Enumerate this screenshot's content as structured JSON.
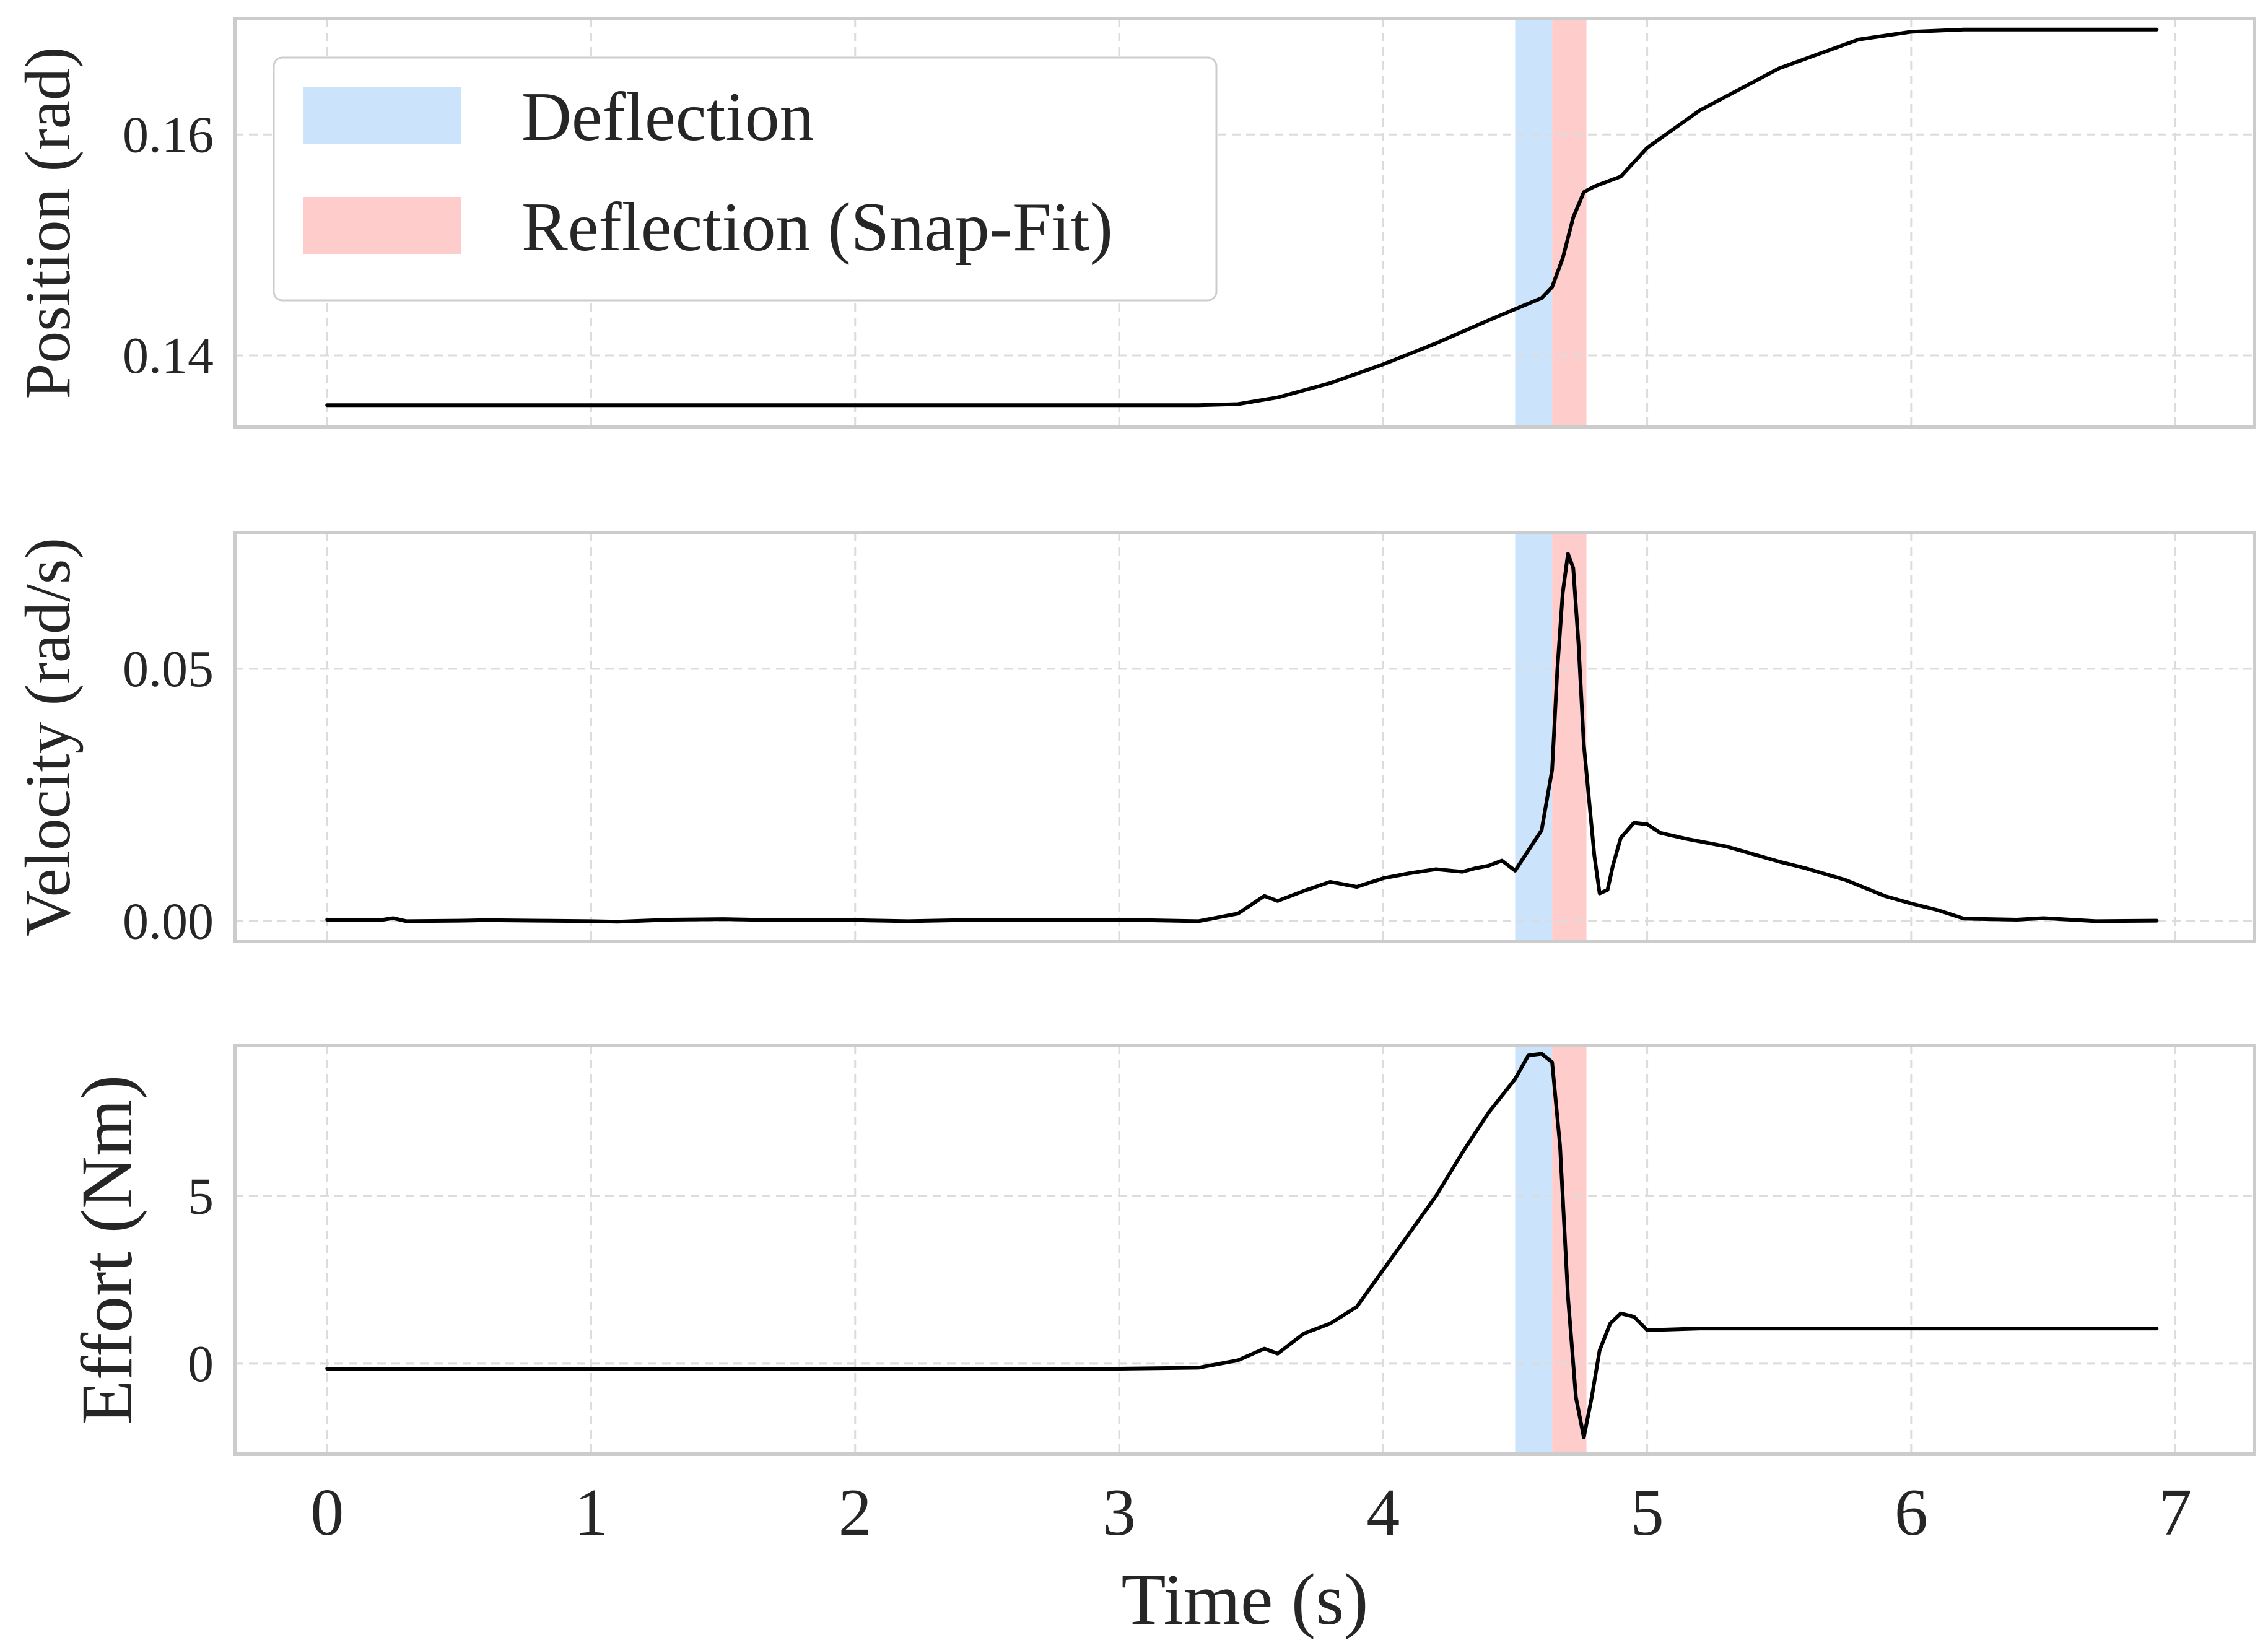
{
  "chart_data": {
    "type": "line",
    "xlabel": "Time (s)",
    "xlim": [
      -0.35,
      7.3
    ],
    "xticks": [
      0,
      1,
      2,
      3,
      4,
      5,
      6,
      7
    ],
    "x_tick_labels": [
      "0",
      "1",
      "2",
      "3",
      "4",
      "5",
      "6",
      "7"
    ],
    "grid": true,
    "colors": {
      "line": "#000000",
      "deflection": "#cce4fb",
      "reflection": "#ffcccc",
      "frame": "#cccccc",
      "grid": "#dcdcdc"
    },
    "shaded_regions": [
      {
        "label": "Deflection",
        "x_start": 4.5,
        "x_end": 4.64,
        "color": "#cce4fb"
      },
      {
        "label": "Reflection (Snap-Fit)",
        "x_start": 4.64,
        "x_end": 4.77,
        "color": "#ffcccc"
      }
    ],
    "legend": {
      "location": "upper-left of top panel",
      "entries": [
        "Deflection",
        "Reflection (Snap-Fit)"
      ]
    },
    "panels": [
      {
        "id": "position",
        "ylabel": "Position (rad)",
        "ylim": [
          0.1335,
          0.1705
        ],
        "yticks": [
          0.14,
          0.16
        ],
        "y_tick_labels": [
          "0.14",
          "0.16"
        ],
        "series": [
          {
            "name": "Position",
            "x": [
              0,
              1,
              2,
              3,
              3.3,
              3.45,
              3.6,
              3.8,
              4.0,
              4.2,
              4.4,
              4.5,
              4.6,
              4.64,
              4.68,
              4.72,
              4.76,
              4.8,
              4.9,
              5.0,
              5.2,
              5.5,
              5.8,
              6.0,
              6.2,
              6.5,
              6.93
            ],
            "y": [
              0.1355,
              0.1355,
              0.1355,
              0.1355,
              0.1355,
              0.1356,
              0.1362,
              0.1375,
              0.1392,
              0.1411,
              0.1432,
              0.1442,
              0.1452,
              0.1462,
              0.1488,
              0.1525,
              0.1548,
              0.1553,
              0.1562,
              0.1588,
              0.1622,
              0.166,
              0.1686,
              0.1693,
              0.1695,
              0.1695,
              0.1695
            ]
          }
        ]
      },
      {
        "id": "velocity",
        "ylabel": "Velocity (rad/s)",
        "ylim": [
          -0.004,
          0.077
        ],
        "yticks": [
          0.0,
          0.05
        ],
        "y_tick_labels": [
          "0.00",
          "0.05"
        ],
        "series": [
          {
            "name": "Velocity",
            "x": [
              0,
              0.2,
              0.25,
              0.3,
              0.5,
              0.6,
              0.8,
              1.0,
              1.1,
              1.3,
              1.5,
              1.7,
              1.9,
              2.0,
              2.2,
              2.5,
              2.7,
              3.0,
              3.3,
              3.45,
              3.55,
              3.6,
              3.7,
              3.8,
              3.9,
              4.0,
              4.1,
              4.2,
              4.3,
              4.35,
              4.4,
              4.45,
              4.5,
              4.55,
              4.6,
              4.64,
              4.66,
              4.68,
              4.7,
              4.72,
              4.74,
              4.76,
              4.8,
              4.82,
              4.85,
              4.87,
              4.9,
              4.95,
              5.0,
              5.05,
              5.15,
              5.3,
              5.5,
              5.6,
              5.75,
              5.9,
              6.0,
              6.1,
              6.2,
              6.4,
              6.5,
              6.7,
              6.93
            ],
            "y": [
              0.0003,
              0.0002,
              0.0006,
              0.0,
              0.0001,
              0.0002,
              0.0001,
              0.0,
              -0.0001,
              0.0003,
              0.0004,
              0.0002,
              0.0003,
              0.0002,
              0.0,
              0.0003,
              0.0002,
              0.0003,
              0.0,
              0.0015,
              0.005,
              0.004,
              0.006,
              0.0078,
              0.0068,
              0.0085,
              0.0095,
              0.0103,
              0.0098,
              0.0105,
              0.011,
              0.012,
              0.01,
              0.014,
              0.018,
              0.03,
              0.05,
              0.065,
              0.0728,
              0.07,
              0.055,
              0.035,
              0.013,
              0.0055,
              0.0062,
              0.011,
              0.0165,
              0.0195,
              0.0192,
              0.0175,
              0.0163,
              0.0148,
              0.0118,
              0.0105,
              0.0082,
              0.005,
              0.0035,
              0.0022,
              0.0005,
              0.0003,
              0.0006,
              0.0,
              0.0001
            ]
          }
        ]
      },
      {
        "id": "effort",
        "ylabel": "Effort (Nm)",
        "ylim": [
          -2.7,
          9.5
        ],
        "yticks": [
          0,
          5
        ],
        "y_tick_labels": [
          "0",
          "5"
        ],
        "series": [
          {
            "name": "Effort",
            "x": [
              0,
              1,
              2,
              3,
              3.3,
              3.45,
              3.55,
              3.6,
              3.7,
              3.8,
              3.9,
              4.0,
              4.1,
              4.2,
              4.3,
              4.4,
              4.5,
              4.55,
              4.6,
              4.64,
              4.67,
              4.7,
              4.73,
              4.76,
              4.79,
              4.82,
              4.86,
              4.9,
              4.95,
              5.0,
              5.2,
              5.5,
              6.0,
              6.5,
              6.93
            ],
            "y": [
              -0.15,
              -0.15,
              -0.15,
              -0.15,
              -0.12,
              0.1,
              0.45,
              0.3,
              0.9,
              1.2,
              1.7,
              2.8,
              3.9,
              5.0,
              6.3,
              7.5,
              8.5,
              9.2,
              9.25,
              9.0,
              6.5,
              2.0,
              -1.0,
              -2.2,
              -1.0,
              0.4,
              1.2,
              1.5,
              1.4,
              1.0,
              1.05,
              1.05,
              1.05,
              1.05,
              1.05
            ]
          }
        ]
      }
    ]
  }
}
